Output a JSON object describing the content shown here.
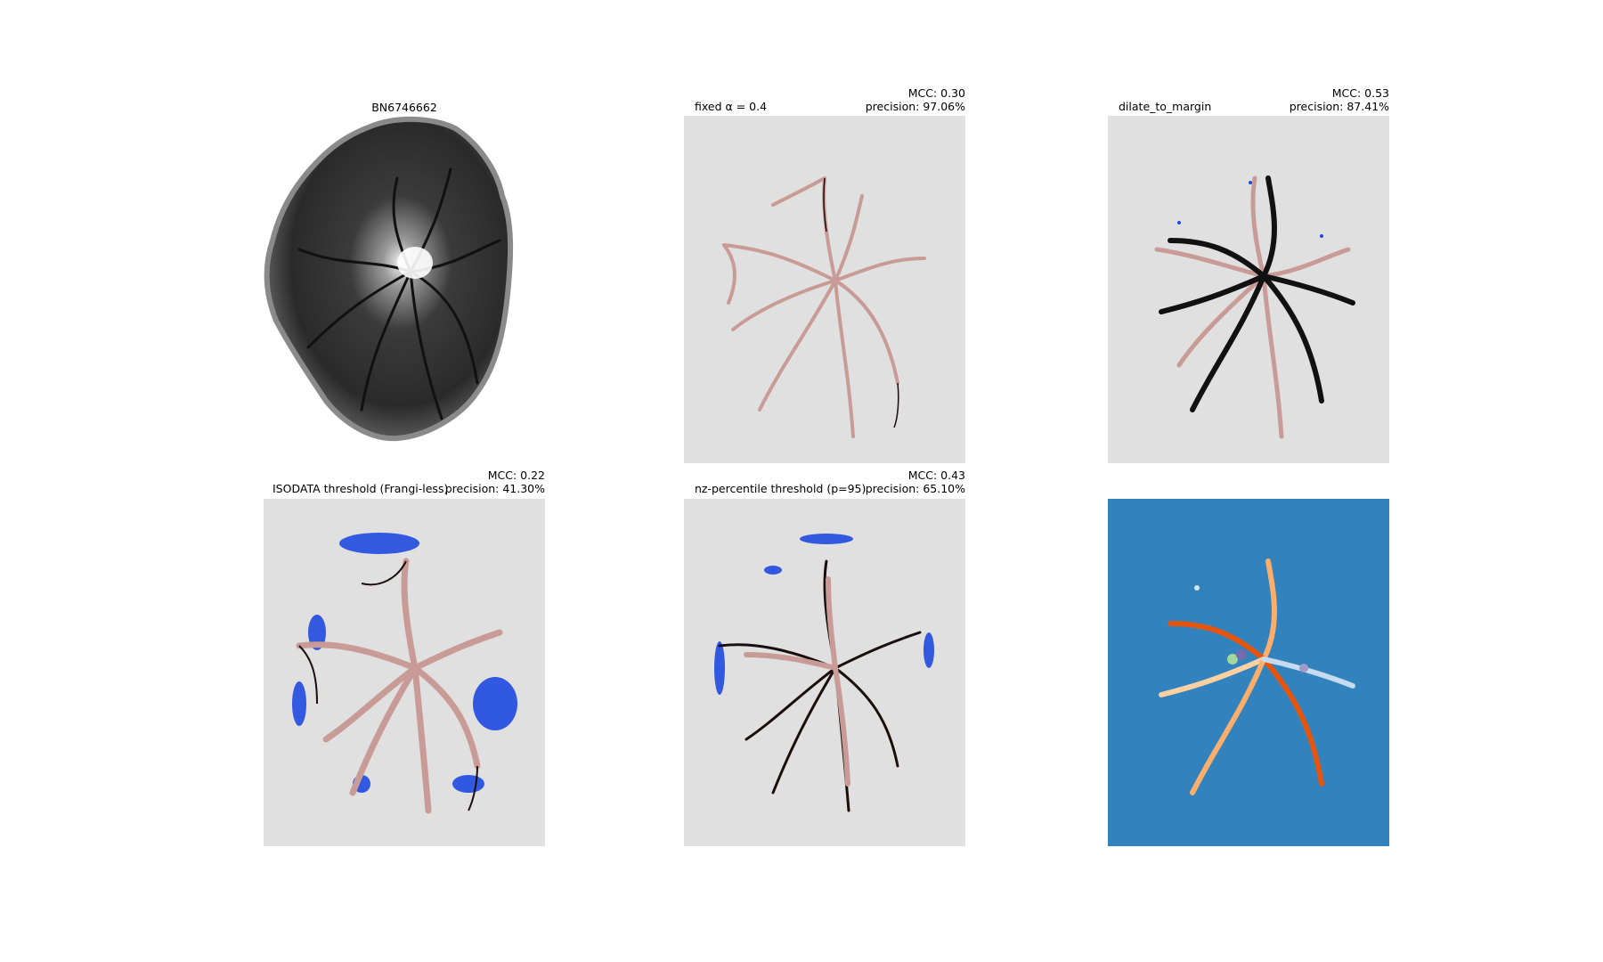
{
  "figure": {
    "panels": [
      {
        "id": "raw",
        "title": "BN6746662"
      },
      {
        "id": "fixed",
        "left_title": "fixed α = 0.4",
        "mcc": "MCC: 0.30",
        "precision": "precision: 97.06%"
      },
      {
        "id": "dilate",
        "left_title": "dilate_to_margin",
        "mcc": "MCC: 0.53",
        "precision": "precision: 87.41%"
      },
      {
        "id": "isodata",
        "left_title": "ISODATA threshold (Frangi-less)",
        "mcc": "MCC: 0.22",
        "precision": "precision: 41.30%"
      },
      {
        "id": "nzpct",
        "left_title": "nz-percentile threshold (p=95)",
        "mcc": "MCC: 0.43",
        "precision": "precision: 65.10%"
      },
      {
        "id": "labels",
        "title": ""
      }
    ]
  },
  "colors": {
    "axes_bg": "#e0e0e0",
    "vessel_truth": "#c89b97",
    "true_positive": "#1a0d0d",
    "false_positive": "#1f4ae0",
    "label_bg": "#3182bd"
  },
  "icons": [
    "fundus-image",
    "vessel-segmentation-overlay",
    "label-map"
  ]
}
